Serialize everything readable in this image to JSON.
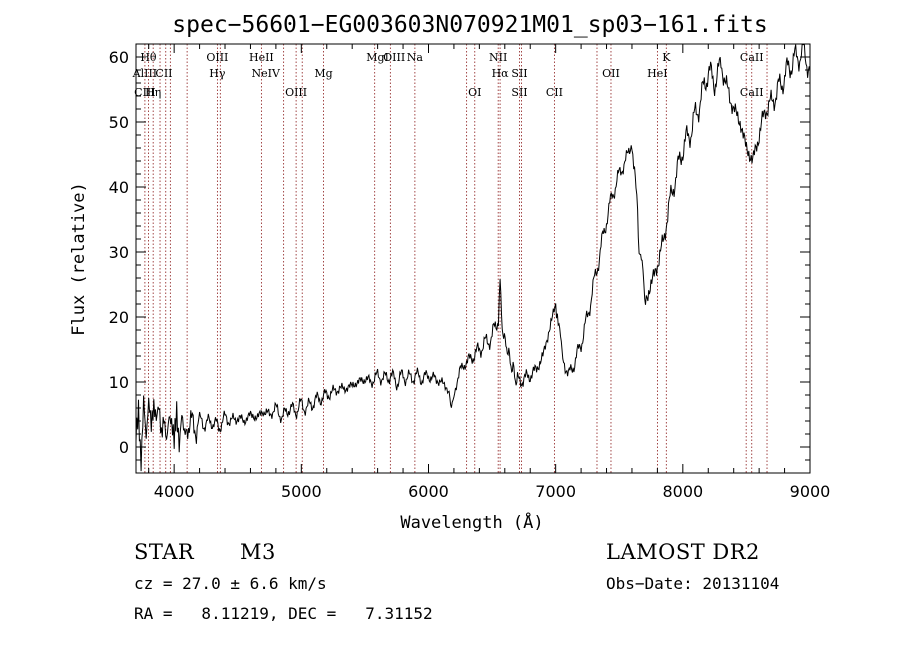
{
  "chart_data": {
    "type": "line",
    "title": "spec−56601−EG003603N070921M01_sp03−161.fits",
    "xlabel": "Wavelength (Å)",
    "ylabel": "Flux (relative)",
    "xlim": [
      3700,
      9000
    ],
    "ylim": [
      -4,
      62
    ],
    "xticks": [
      4000,
      5000,
      6000,
      7000,
      8000,
      9000
    ],
    "yticks": [
      0,
      10,
      20,
      30,
      40,
      50,
      60
    ],
    "grid": false,
    "series": [
      {
        "color": "#000000",
        "points": [
          [
            3700,
            3
          ],
          [
            3720,
            7
          ],
          [
            3740,
            -2
          ],
          [
            3760,
            8
          ],
          [
            3780,
            1
          ],
          [
            3800,
            6
          ],
          [
            3820,
            2
          ],
          [
            3840,
            5
          ],
          [
            3860,
            4
          ],
          [
            3880,
            7
          ],
          [
            3900,
            3
          ],
          [
            3920,
            6
          ],
          [
            3940,
            2
          ],
          [
            3960,
            5
          ],
          [
            3980,
            3
          ],
          [
            4000,
            0
          ],
          [
            4020,
            4
          ],
          [
            4040,
            -1
          ],
          [
            4060,
            5
          ],
          [
            4080,
            3
          ],
          [
            4100,
            4
          ],
          [
            4150,
            3
          ],
          [
            4200,
            4
          ],
          [
            4250,
            3.5
          ],
          [
            4300,
            4
          ],
          [
            4350,
            3
          ],
          [
            4400,
            4.5
          ],
          [
            4450,
            4
          ],
          [
            4500,
            4.5
          ],
          [
            4550,
            4
          ],
          [
            4600,
            5
          ],
          [
            4650,
            4.5
          ],
          [
            4700,
            5.5
          ],
          [
            4750,
            5
          ],
          [
            4800,
            6
          ],
          [
            4850,
            4.5
          ],
          [
            4900,
            6
          ],
          [
            4950,
            5.5
          ],
          [
            5000,
            6.5
          ],
          [
            5050,
            6
          ],
          [
            5100,
            7
          ],
          [
            5150,
            7.5
          ],
          [
            5200,
            8
          ],
          [
            5250,
            8.5
          ],
          [
            5300,
            9
          ],
          [
            5350,
            9
          ],
          [
            5400,
            9.5
          ],
          [
            5450,
            10
          ],
          [
            5500,
            10.5
          ],
          [
            5550,
            10
          ],
          [
            5600,
            11
          ],
          [
            5650,
            10.5
          ],
          [
            5700,
            11
          ],
          [
            5750,
            10
          ],
          [
            5800,
            11
          ],
          [
            5850,
            10.5
          ],
          [
            5900,
            11
          ],
          [
            5950,
            10.5
          ],
          [
            6000,
            11
          ],
          [
            6050,
            10.5
          ],
          [
            6100,
            10
          ],
          [
            6150,
            9
          ],
          [
            6180,
            6
          ],
          [
            6200,
            8
          ],
          [
            6250,
            12
          ],
          [
            6300,
            13
          ],
          [
            6350,
            14
          ],
          [
            6400,
            15
          ],
          [
            6450,
            16
          ],
          [
            6500,
            17
          ],
          [
            6550,
            20
          ],
          [
            6563,
            26
          ],
          [
            6580,
            18
          ],
          [
            6620,
            15
          ],
          [
            6660,
            12
          ],
          [
            6700,
            10
          ],
          [
            6750,
            10.5
          ],
          [
            6800,
            11
          ],
          [
            6850,
            12
          ],
          [
            6900,
            14
          ],
          [
            6950,
            18
          ],
          [
            7000,
            22
          ],
          [
            7020,
            20
          ],
          [
            7050,
            14
          ],
          [
            7100,
            11
          ],
          [
            7150,
            13
          ],
          [
            7200,
            16
          ],
          [
            7250,
            20
          ],
          [
            7300,
            25
          ],
          [
            7350,
            30
          ],
          [
            7400,
            35
          ],
          [
            7450,
            39
          ],
          [
            7500,
            42
          ],
          [
            7550,
            44
          ],
          [
            7600,
            47
          ],
          [
            7620,
            43
          ],
          [
            7650,
            33
          ],
          [
            7680,
            28
          ],
          [
            7700,
            22
          ],
          [
            7750,
            25
          ],
          [
            7800,
            28
          ],
          [
            7850,
            32
          ],
          [
            7900,
            38
          ],
          [
            7950,
            42
          ],
          [
            8000,
            46
          ],
          [
            8050,
            48
          ],
          [
            8100,
            51
          ],
          [
            8150,
            54
          ],
          [
            8200,
            58
          ],
          [
            8250,
            56
          ],
          [
            8300,
            59
          ],
          [
            8350,
            55
          ],
          [
            8400,
            52
          ],
          [
            8450,
            50
          ],
          [
            8500,
            46
          ],
          [
            8550,
            44
          ],
          [
            8600,
            48
          ],
          [
            8650,
            52
          ],
          [
            8700,
            53
          ],
          [
            8750,
            55
          ],
          [
            8800,
            57
          ],
          [
            8850,
            59
          ],
          [
            8900,
            60
          ],
          [
            8950,
            61
          ],
          [
            9000,
            58
          ]
        ]
      }
    ],
    "line_labels": [
      {
        "text": "Hθ",
        "wavelength": 3798,
        "row": 1
      },
      {
        "text": "AlIII",
        "wavelength": 3770,
        "row": 2
      },
      {
        "text": "CIII",
        "wavelength": 3770,
        "row": 3
      },
      {
        "text": "Hη",
        "wavelength": 3835,
        "row": 3
      },
      {
        "text": "CII",
        "wavelength": 3920,
        "row": 2
      },
      {
        "text": "OIII",
        "wavelength": 4340,
        "row": 1
      },
      {
        "text": "Hγ",
        "wavelength": 4340,
        "row": 2
      },
      {
        "text": "HeII",
        "wavelength": 4686,
        "row": 1
      },
      {
        "text": "NeIV",
        "wavelength": 4720,
        "row": 2
      },
      {
        "text": "OIII",
        "wavelength": 4959,
        "row": 3
      },
      {
        "text": "Mg",
        "wavelength": 5175,
        "row": 2
      },
      {
        "text": "MgI",
        "wavelength": 5600,
        "row": 1
      },
      {
        "text": "OIII",
        "wavelength": 5730,
        "row": 1
      },
      {
        "text": "Na",
        "wavelength": 5893,
        "row": 1
      },
      {
        "text": "NII",
        "wavelength": 6548,
        "row": 1
      },
      {
        "text": "Hα",
        "wavelength": 6563,
        "row": 2
      },
      {
        "text": "SII",
        "wavelength": 6716,
        "row": 2
      },
      {
        "text": "OI",
        "wavelength": 6364,
        "row": 3
      },
      {
        "text": "SII",
        "wavelength": 6716,
        "row": 3
      },
      {
        "text": "CII",
        "wavelength": 6990,
        "row": 3
      },
      {
        "text": "OII",
        "wavelength": 7435,
        "row": 2
      },
      {
        "text": "K",
        "wavelength": 7870,
        "row": 1
      },
      {
        "text": "HeI",
        "wavelength": 7800,
        "row": 2
      },
      {
        "text": "CaII",
        "wavelength": 8542,
        "row": 1
      },
      {
        "text": "CaII",
        "wavelength": 8542,
        "row": 3
      }
    ],
    "line_wavelengths": [
      3770,
      3798,
      3835,
      3889,
      3934,
      3970,
      4102,
      4340,
      4363,
      4686,
      4861,
      4959,
      5007,
      5175,
      5577,
      5700,
      5893,
      6300,
      6364,
      6548,
      6563,
      6716,
      6731,
      6990,
      7325,
      7435,
      7800,
      7870,
      8498,
      8542,
      8662
    ]
  },
  "info": {
    "class": "STAR",
    "subclass": "M3",
    "cz": "cz = 27.0 ± 6.6 km/s",
    "coords": "RA =   8.11219, DEC =   7.31152",
    "survey": "LAMOST DR2",
    "obs_date": "Obs−Date: 20131104"
  }
}
